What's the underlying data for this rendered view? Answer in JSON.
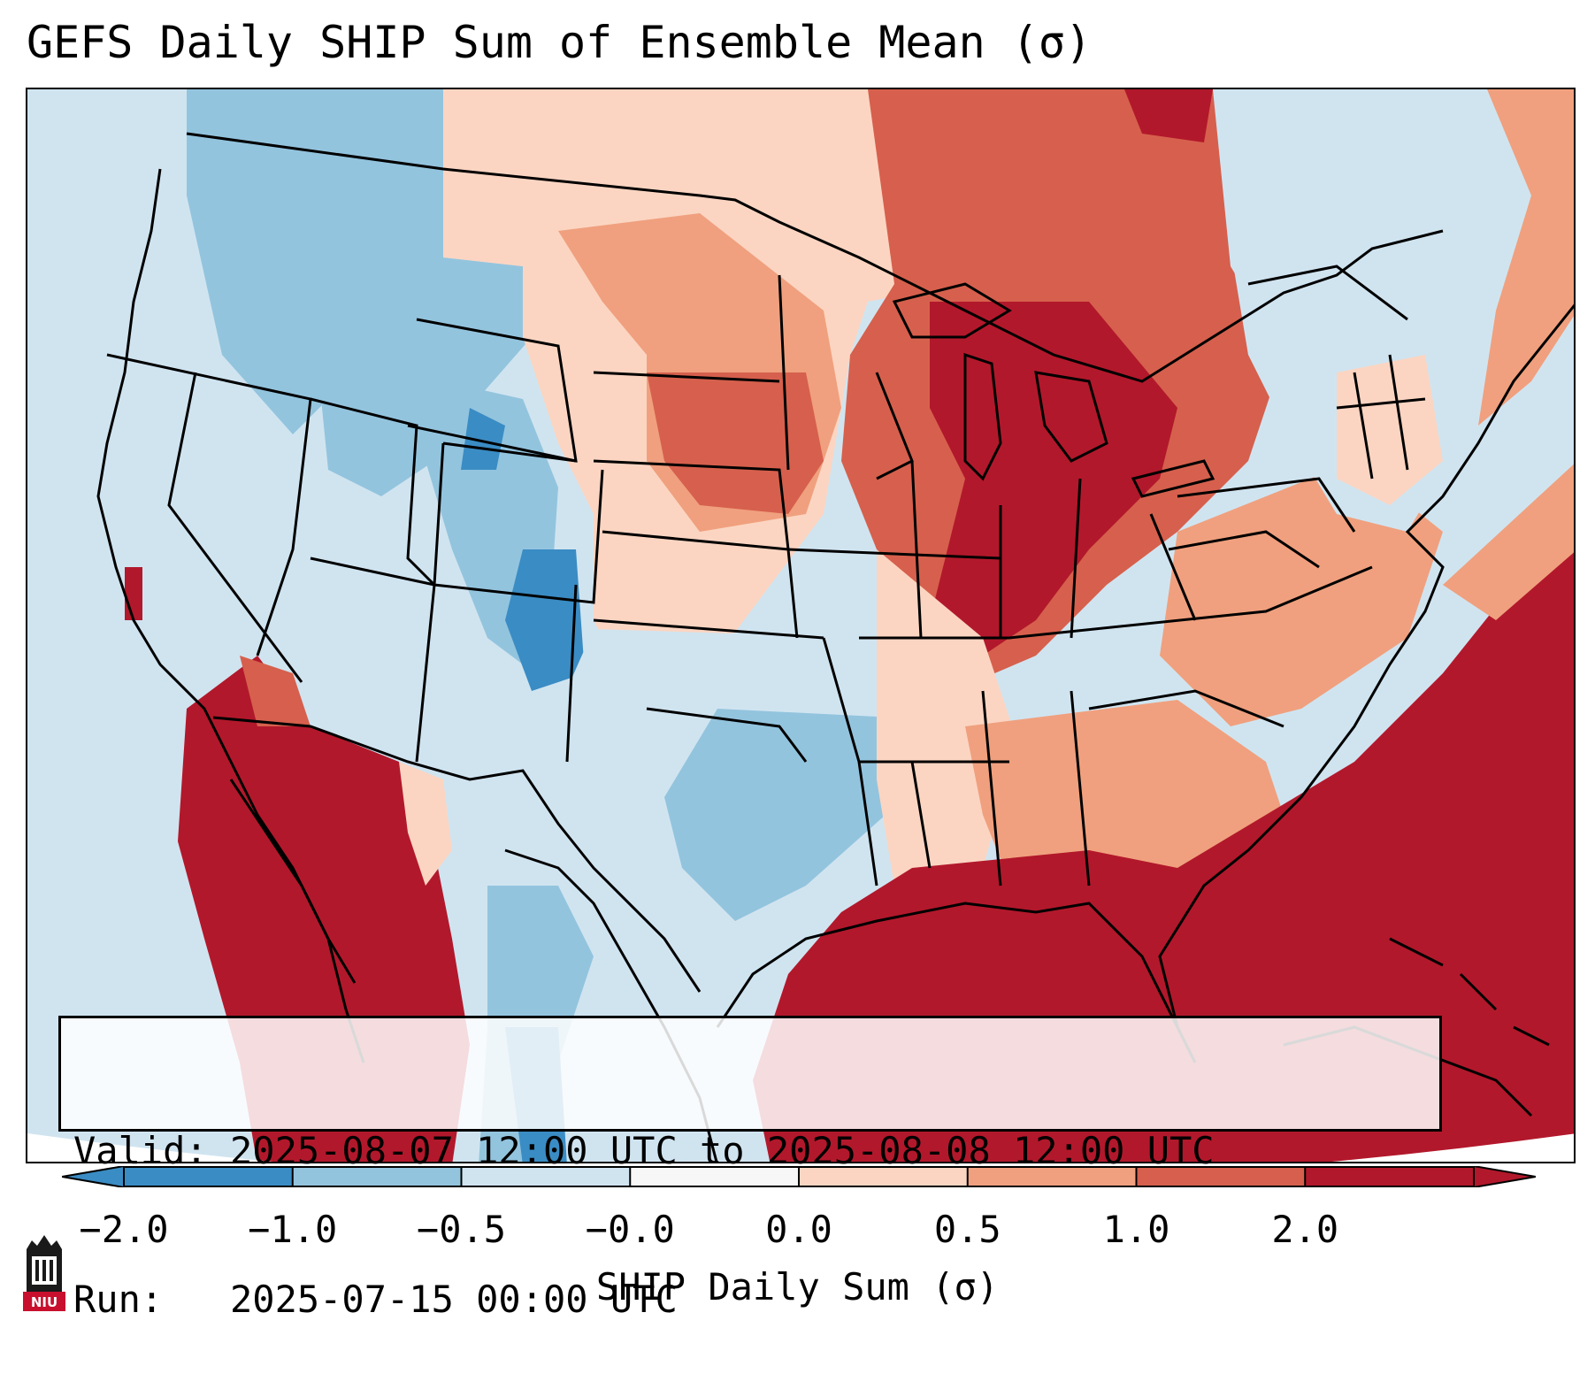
{
  "title": "GEFS Daily SHIP Sum of Ensemble Mean (σ)",
  "info": {
    "valid_line": "Valid: 2025-08-07 12:00 UTC to 2025-08-08 12:00 UTC",
    "run_line": "Run:   2025-07-15 00:00 UTC"
  },
  "colorbar": {
    "label": "SHIP Daily Sum (σ)",
    "ticks": [
      "−2.0",
      "−1.0",
      "−0.5",
      "−0.0",
      "0.0",
      "0.5",
      "1.0",
      "2.0"
    ],
    "colors": [
      "#3a8cc4",
      "#93c4de",
      "#d0e4f0",
      "#f7f7f7",
      "#fbd5c2",
      "#f0a07e",
      "#d6604d",
      "#b2182b"
    ],
    "extend": "both",
    "orientation": "horizontal"
  },
  "map": {
    "projection": "lambert-conformal",
    "region": "CONUS",
    "boundaries": [
      "coastlines",
      "countries",
      "states"
    ],
    "ocean_color": "#d0e4f0"
  },
  "logo": {
    "text": "NIU",
    "color": "#c8102e"
  }
}
